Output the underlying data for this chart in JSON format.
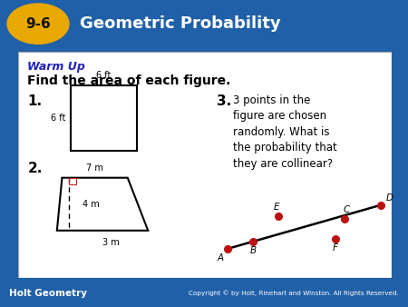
{
  "title": "Geometric Probability",
  "section": "9-6",
  "header_bg": "#2060a8",
  "header_text_color": "#ffffff",
  "section_badge_color": "#e8a800",
  "footer_text": "Holt Geometry",
  "footer_copyright": "Copyright © by Holt, Rinehart and Winston. All Rights Reserved.",
  "footer_bg": "#3070b8",
  "warm_up_color": "#2222bb",
  "subtitle": "Find the area of each figure.",
  "item1_label": "1.",
  "item2_label": "2.",
  "item3_label": "3.",
  "item3_text": "3 points in the\nfigure are chosen\nrandomly. What is\nthe probability that\nthey are collinear?",
  "sq_side_label": "6 ft",
  "trap_top_label": "7 m",
  "trap_height_label": "4 m",
  "trap_bottom_label": "3 m",
  "dot_color": "#bb1111"
}
